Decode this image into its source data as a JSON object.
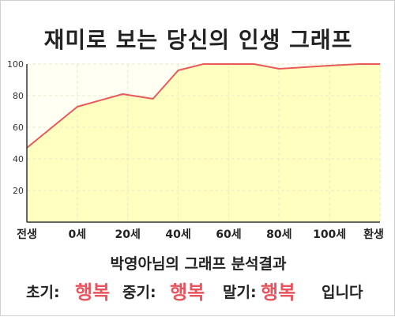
{
  "title": "재미로 보는 당신의 인생 그래프",
  "chart_data": {
    "type": "area",
    "x_categories": [
      "전생",
      "0세",
      "20세",
      "40세",
      "60세",
      "80세",
      "100세",
      "환생"
    ],
    "y_ticks": [
      20,
      40,
      60,
      80,
      100
    ],
    "ylim": [
      0,
      100
    ],
    "grid": true,
    "series": [
      {
        "points": [
          {
            "x": -1,
            "y": 47
          },
          {
            "x": 0,
            "y": 73
          },
          {
            "x": 0.9,
            "y": 81
          },
          {
            "x": 1.5,
            "y": 78
          },
          {
            "x": 2.0,
            "y": 96
          },
          {
            "x": 2.5,
            "y": 100
          },
          {
            "x": 3.5,
            "y": 100
          },
          {
            "x": 4.0,
            "y": 97
          },
          {
            "x": 5.0,
            "y": 99
          },
          {
            "x": 5.6,
            "y": 100
          },
          {
            "x": 6.0,
            "y": 100
          }
        ]
      }
    ]
  },
  "result": {
    "subtitle": "박영아님의 그래프 분석결과",
    "early_label": "초기:",
    "early_value": "행복",
    "middle_label": "중기:",
    "middle_value": "행복",
    "late_label": "말기:",
    "late_value": "행복",
    "suffix": "입니다"
  },
  "colors": {
    "line": "#e85a5a",
    "fill": "#ffffc0",
    "highlight": "#e8545e",
    "plot_bg": "#fffff4",
    "grid": "#e8e8c8"
  }
}
